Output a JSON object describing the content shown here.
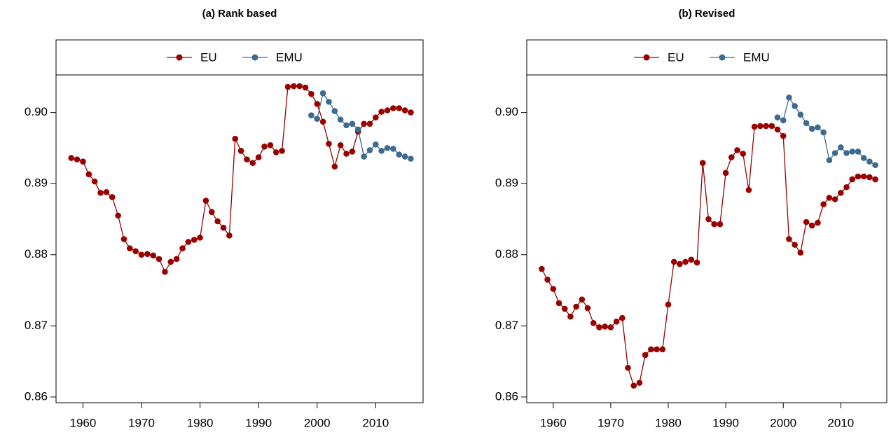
{
  "chart_data": [
    {
      "type": "line",
      "title": "(a) Rank based",
      "x": [
        1958,
        1959,
        1960,
        1961,
        1962,
        1963,
        1964,
        1965,
        1966,
        1967,
        1968,
        1969,
        1970,
        1971,
        1972,
        1973,
        1974,
        1975,
        1976,
        1977,
        1978,
        1979,
        1980,
        1981,
        1982,
        1983,
        1984,
        1985,
        1986,
        1987,
        1988,
        1989,
        1990,
        1991,
        1992,
        1993,
        1994,
        1995,
        1996,
        1997,
        1998,
        1999,
        2000,
        2001,
        2002,
        2003,
        2004,
        2005,
        2006,
        2007,
        2008,
        2009,
        2010,
        2011,
        2012,
        2013,
        2014,
        2015,
        2016
      ],
      "series": [
        {
          "name": "EU",
          "color": "#990000",
          "values": [
            0.8936,
            0.8934,
            0.8931,
            0.8913,
            0.8903,
            0.8887,
            0.8888,
            0.8881,
            0.8855,
            0.8822,
            0.8809,
            0.8805,
            0.88,
            0.8801,
            0.8799,
            0.8794,
            0.8776,
            0.879,
            0.8794,
            0.8809,
            0.8818,
            0.8821,
            0.8824,
            0.8876,
            0.886,
            0.8847,
            0.8838,
            0.8827,
            0.8963,
            0.8946,
            0.8934,
            0.8929,
            0.8937,
            0.8952,
            0.8954,
            0.8944,
            0.8946,
            0.9036,
            0.9037,
            0.9037,
            0.9035,
            0.9026,
            0.9012,
            0.8987,
            0.8956,
            0.8924,
            0.8954,
            0.8942,
            0.8945,
            0.8973,
            0.8984,
            0.8984,
            0.8993,
            0.9001,
            0.9003,
            0.9006,
            0.9006,
            0.9003,
            0.9
          ]
        },
        {
          "name": "EMU",
          "color": "#3d6a91",
          "values": [
            null,
            null,
            null,
            null,
            null,
            null,
            null,
            null,
            null,
            null,
            null,
            null,
            null,
            null,
            null,
            null,
            null,
            null,
            null,
            null,
            null,
            null,
            null,
            null,
            null,
            null,
            null,
            null,
            null,
            null,
            null,
            null,
            null,
            null,
            null,
            null,
            null,
            null,
            null,
            null,
            null,
            0.8996,
            0.8991,
            0.9027,
            0.9015,
            0.9002,
            0.899,
            0.8982,
            0.8984,
            0.8976,
            0.8938,
            0.8947,
            0.8955,
            0.8946,
            0.895,
            0.8949,
            0.8941,
            0.8938,
            0.8935
          ]
        }
      ],
      "xlim": [
        1955.4,
        2018.1
      ],
      "xticks": [
        1960,
        1970,
        1980,
        1990,
        2000,
        2010
      ],
      "ylim": [
        0.8592,
        0.9102
      ],
      "yticks": [
        0.86,
        0.87,
        0.88,
        0.89,
        {
          "value": 0.9,
          "label": "0.90"
        }
      ],
      "legend": "top"
    },
    {
      "type": "line",
      "title": "(b) Revised",
      "x": [
        1958,
        1959,
        1960,
        1961,
        1962,
        1963,
        1964,
        1965,
        1966,
        1967,
        1968,
        1969,
        1970,
        1971,
        1972,
        1973,
        1974,
        1975,
        1976,
        1977,
        1978,
        1979,
        1980,
        1981,
        1982,
        1983,
        1984,
        1985,
        1986,
        1987,
        1988,
        1989,
        1990,
        1991,
        1992,
        1993,
        1994,
        1995,
        1996,
        1997,
        1998,
        1999,
        2000,
        2001,
        2002,
        2003,
        2004,
        2005,
        2006,
        2007,
        2008,
        2009,
        2010,
        2011,
        2012,
        2013,
        2014,
        2015,
        2016
      ],
      "series": [
        {
          "name": "EU",
          "color": "#990000",
          "values": [
            0.878,
            0.8765,
            0.8752,
            0.8732,
            0.8724,
            0.8713,
            0.8727,
            0.8737,
            0.8725,
            0.8704,
            0.8698,
            0.8699,
            0.8698,
            0.8706,
            0.8711,
            0.8641,
            0.8616,
            0.862,
            0.8659,
            0.8667,
            0.8667,
            0.8667,
            0.873,
            0.879,
            0.8787,
            0.879,
            0.8793,
            0.8789,
            0.8929,
            0.885,
            0.8843,
            0.8843,
            0.8915,
            0.8937,
            0.8947,
            0.8942,
            0.8891,
            0.898,
            0.8981,
            0.8981,
            0.8981,
            0.8976,
            0.8967,
            0.8822,
            0.8814,
            0.8803,
            0.8846,
            0.8841,
            0.8845,
            0.8871,
            0.888,
            0.8878,
            0.8887,
            0.8895,
            0.8906,
            0.891,
            0.891,
            0.8909,
            0.8906
          ]
        },
        {
          "name": "EMU",
          "color": "#3d6a91",
          "values": [
            null,
            null,
            null,
            null,
            null,
            null,
            null,
            null,
            null,
            null,
            null,
            null,
            null,
            null,
            null,
            null,
            null,
            null,
            null,
            null,
            null,
            null,
            null,
            null,
            null,
            null,
            null,
            null,
            null,
            null,
            null,
            null,
            null,
            null,
            null,
            null,
            null,
            null,
            null,
            null,
            null,
            0.8993,
            0.8989,
            0.9021,
            0.9009,
            0.8997,
            0.8985,
            0.8977,
            0.8979,
            0.8972,
            0.8933,
            0.8943,
            0.8951,
            0.8943,
            0.8945,
            0.8945,
            0.8936,
            0.8931,
            0.8926
          ]
        }
      ],
      "xlim": [
        1955.4,
        2018.0
      ],
      "xticks": [
        1960,
        1970,
        1980,
        1990,
        2000,
        2010
      ],
      "ylim": [
        0.8592,
        0.9102
      ],
      "yticks": [
        0.86,
        0.87,
        0.88,
        0.89,
        {
          "value": 0.9,
          "label": "0.90"
        }
      ],
      "legend": "top"
    }
  ]
}
